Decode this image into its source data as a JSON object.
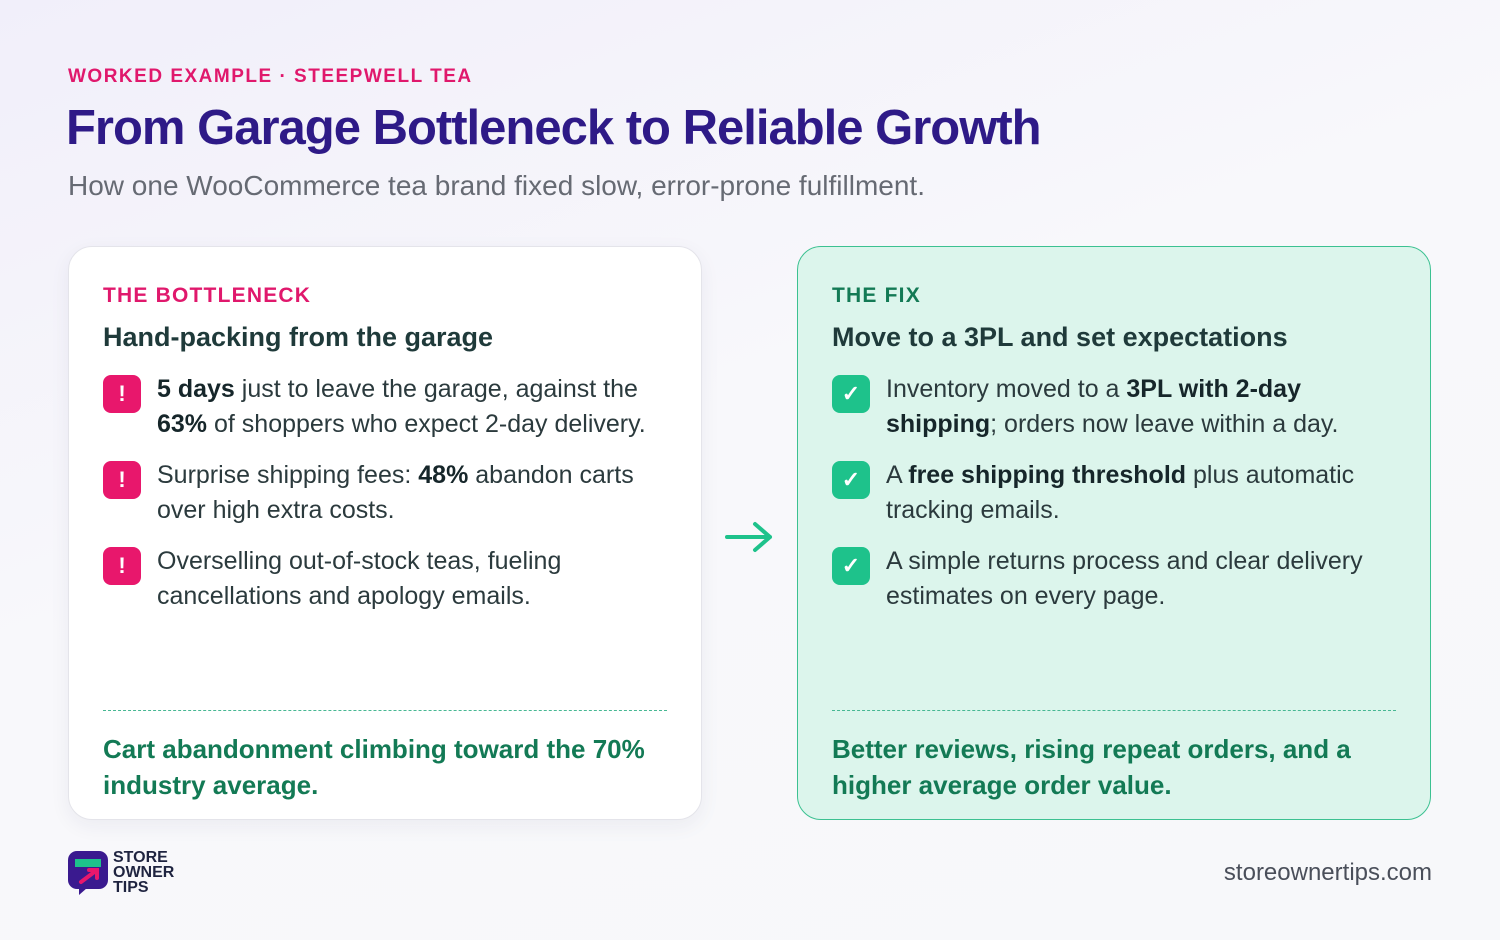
{
  "header": {
    "eyebrow": "WORKED EXAMPLE · STEEPWELL TEA",
    "title": "From Garage Bottleneck to Reliable Growth",
    "subtitle": "How one WooCommerce tea brand fixed slow, error-prone fulfillment."
  },
  "cards": [
    {
      "label": "THE BOTTLENECK",
      "heading": "Hand-packing from the garage",
      "icon": "!",
      "items": [
        [
          {
            "text": "5 days",
            "strong": true
          },
          {
            "text": " just to leave the garage, against the "
          },
          {
            "text": "63%",
            "strong": true
          },
          {
            "text": " of shoppers who expect 2-day delivery."
          }
        ],
        [
          {
            "text": "Surprise shipping fees: "
          },
          {
            "text": "48%",
            "strong": true
          },
          {
            "text": " abandon carts over high extra costs."
          }
        ],
        [
          {
            "text": "Overselling out-of-stock teas, fueling cancellations and apology emails."
          }
        ]
      ],
      "footer": "Cart abandonment climbing toward the 70% industry average."
    },
    {
      "label": "THE FIX",
      "heading": "Move to a 3PL and set expectations",
      "icon": "✓",
      "items": [
        [
          {
            "text": "Inventory moved to a "
          },
          {
            "text": "3PL with 2-day shipping",
            "strong": true
          },
          {
            "text": "; orders now leave within a day."
          }
        ],
        [
          {
            "text": "A "
          },
          {
            "text": "free shipping threshold",
            "strong": true
          },
          {
            "text": " plus automatic tracking emails."
          }
        ],
        [
          {
            "text": "A simple returns process and clear delivery estimates on every page."
          }
        ]
      ],
      "footer": "Better reviews, rising repeat orders, and a higher average order value."
    }
  ],
  "footer": {
    "logo_lines": [
      "STORE",
      "OWNER",
      "TIPS"
    ],
    "url": "storeownertips.com"
  }
}
